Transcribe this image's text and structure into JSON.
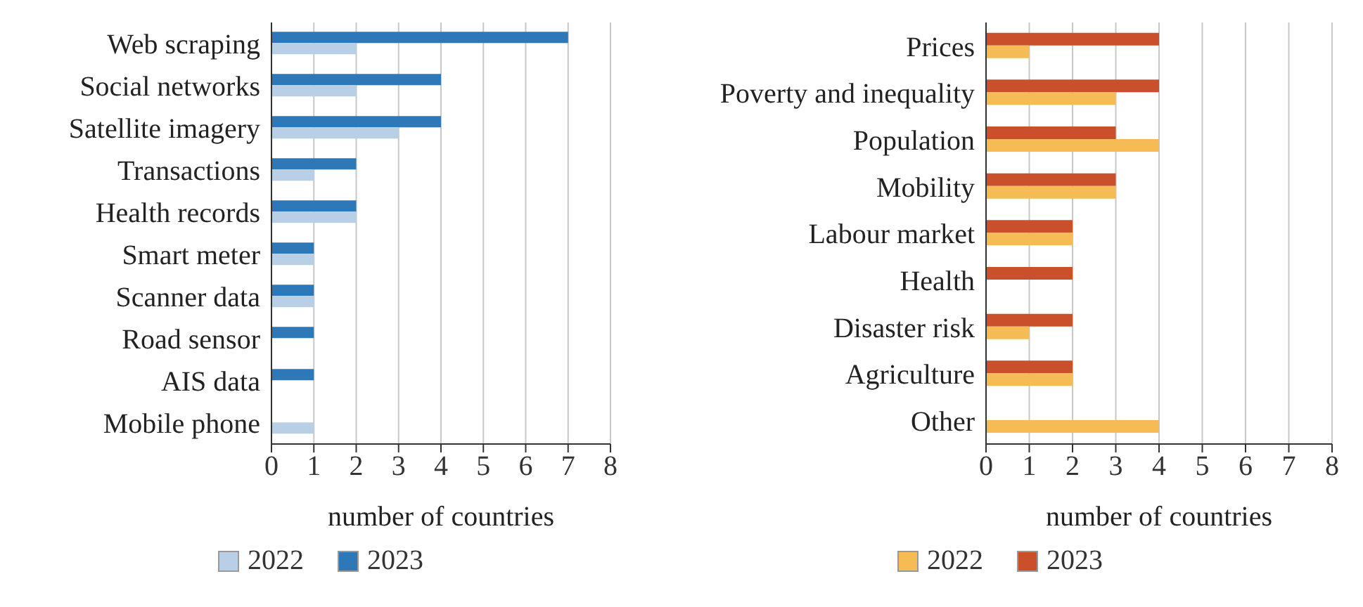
{
  "chart_data": [
    {
      "type": "bar",
      "orientation": "horizontal",
      "categories": [
        "Web scraping",
        "Social networks",
        "Satellite imagery",
        "Transactions",
        "Health records",
        "Smart meter",
        "Scanner data",
        "Road sensor",
        "AIS data",
        "Mobile phone"
      ],
      "series": [
        {
          "name": "2022",
          "color": "#b8cfe6",
          "values": [
            2,
            2,
            3,
            1,
            2,
            1,
            1,
            0,
            0,
            1
          ]
        },
        {
          "name": "2023",
          "color": "#2e78b7",
          "values": [
            7,
            4,
            4,
            2,
            2,
            1,
            1,
            1,
            1,
            0
          ]
        }
      ],
      "xlim": [
        0,
        8
      ],
      "xticks": [
        0,
        1,
        2,
        3,
        4,
        5,
        6,
        7,
        8
      ],
      "xlabel": "number of countries",
      "grid": "x",
      "legend": "bottom"
    },
    {
      "type": "bar",
      "orientation": "horizontal",
      "categories": [
        "Prices",
        "Poverty and inequality",
        "Population",
        "Mobility",
        "Labour market",
        "Health",
        "Disaster risk",
        "Agriculture",
        "Other"
      ],
      "series": [
        {
          "name": "2022",
          "color": "#f5bb55",
          "values": [
            1,
            3,
            4,
            3,
            2,
            0,
            1,
            2,
            4
          ]
        },
        {
          "name": "2023",
          "color": "#c9502a",
          "values": [
            4,
            4,
            3,
            3,
            2,
            2,
            2,
            2,
            0
          ]
        }
      ],
      "xlim": [
        0,
        8
      ],
      "xticks": [
        0,
        1,
        2,
        3,
        4,
        5,
        6,
        7,
        8
      ],
      "xlabel": "number of countries",
      "grid": "x",
      "legend": "bottom"
    }
  ]
}
